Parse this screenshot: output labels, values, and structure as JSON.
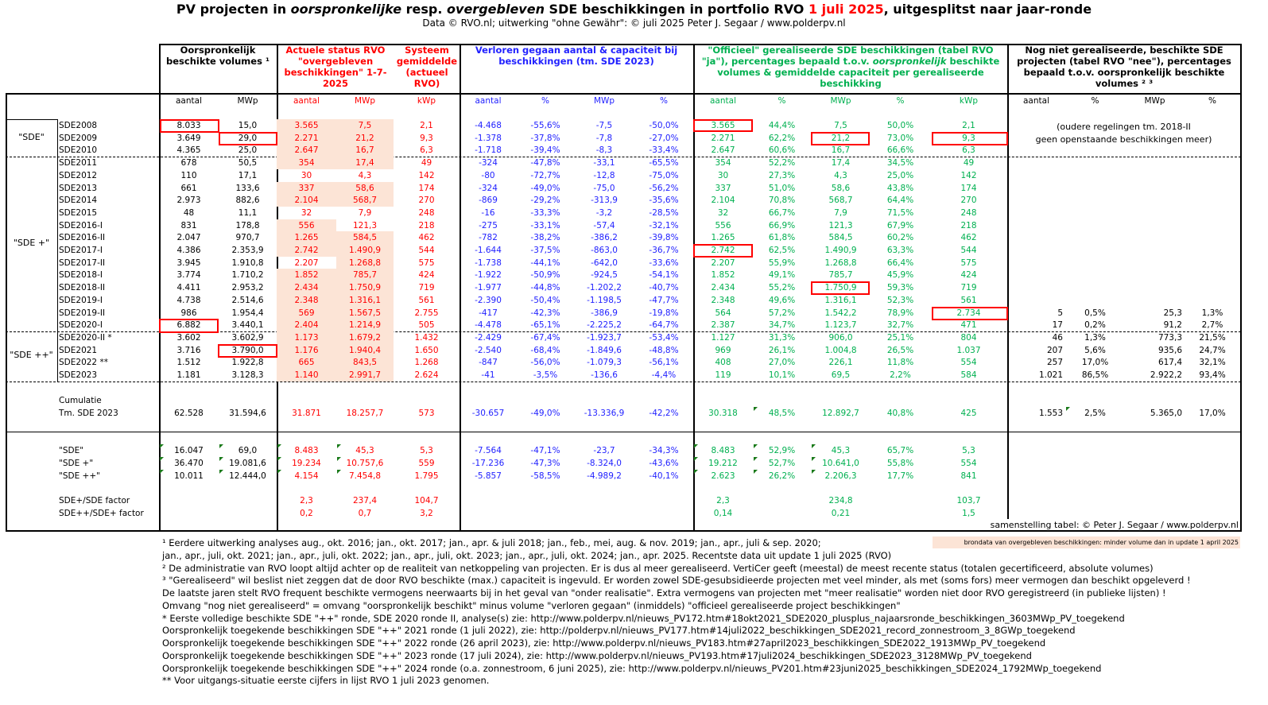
{
  "title": {
    "p1": "PV projecten in ",
    "p2": "oorspronkelijke",
    "p3": " resp. ",
    "p4": "overgebleven",
    "p5": " SDE beschikkingen in portfolio RVO ",
    "p6": "1 juli 2025",
    "p7": ", uitgesplitst naar jaar-ronde"
  },
  "subtitle": "Data © RVO.nl; uitwerking \"ohne Gewähr\": © juli 2025 Peter J. Segaar / www.polderpv.nl",
  "headers": {
    "orig": "Oorspronkelijk beschikte volumes ¹",
    "actual": "Actuele  status  RVO \"overgebleven beschikkingen\" 1-7-2025",
    "system": "Systeem gemiddelde (actueel RVO)",
    "lost": "Verloren gegaan aantal & capaciteit bij beschikkingen (tm. SDE 2023)",
    "real_a": "\"Officieel\" gerealiseerde SDE beschikkingen (tabel RVO \"ja\"), percentages bepaald t.o.v. ",
    "real_b": "oorspronkelijk",
    "real_c": " beschikte volumes & gemiddelde capaciteit per gerealiseerde beschikking",
    "nog": "Nog niet gerealiseerde, beschikte SDE projecten (tabel RVO \"nee\"), percentages bepaald t.o.v. oorspronkelijk beschikte volumes ² ³"
  },
  "subheaders": [
    "aantal",
    "MWp",
    "aantal",
    "MWp",
    "kWp",
    "aantal",
    "%",
    "MWp",
    "%",
    "aantal",
    "%",
    "MWp",
    "%",
    "kWp",
    "aantal",
    "%",
    "MWp",
    "%"
  ],
  "groups": [
    "\"SDE\"",
    "\"SDE +\"",
    "\"SDE ++\""
  ],
  "old_note": [
    "(oudere regelingen tm. 2018-II",
    "geen openstaande beschikkingen meer)"
  ],
  "rows": [
    [
      "SDE2008",
      "8.033",
      "15,0",
      "3.565",
      "7,5",
      "2,1",
      "-4.468",
      "-55,6%",
      "-7,5",
      "-50,0%",
      "3.565",
      "44,4%",
      "7,5",
      "50,0%",
      "2,1",
      "",
      "",
      "",
      ""
    ],
    [
      "SDE2009",
      "3.649",
      "29,0",
      "2.271",
      "21,2",
      "9,3",
      "-1.378",
      "-37,8%",
      "-7,8",
      "-27,0%",
      "2.271",
      "62,2%",
      "21,2",
      "73,0%",
      "9,3",
      "",
      "",
      "",
      ""
    ],
    [
      "SDE2010",
      "4.365",
      "25,0",
      "2.647",
      "16,7",
      "6,3",
      "-1.718",
      "-39,4%",
      "-8,3",
      "-33,4%",
      "2.647",
      "60,6%",
      "16,7",
      "66,6%",
      "6,3",
      "",
      "",
      "",
      ""
    ],
    [
      "SDE2011",
      "678",
      "50,5",
      "354",
      "17,4",
      "49",
      "-324",
      "-47,8%",
      "-33,1",
      "-65,5%",
      "354",
      "52,2%",
      "17,4",
      "34,5%",
      "49",
      "",
      "",
      "",
      ""
    ],
    [
      "SDE2012",
      "110",
      "17,1",
      "30",
      "4,3",
      "142",
      "-80",
      "-72,7%",
      "-12,8",
      "-75,0%",
      "30",
      "27,3%",
      "4,3",
      "25,0%",
      "142",
      "",
      "",
      "",
      ""
    ],
    [
      "SDE2013",
      "661",
      "133,6",
      "337",
      "58,6",
      "174",
      "-324",
      "-49,0%",
      "-75,0",
      "-56,2%",
      "337",
      "51,0%",
      "58,6",
      "43,8%",
      "174",
      "",
      "",
      "",
      ""
    ],
    [
      "SDE2014",
      "2.973",
      "882,6",
      "2.104",
      "568,7",
      "270",
      "-869",
      "-29,2%",
      "-313,9",
      "-35,6%",
      "2.104",
      "70,8%",
      "568,7",
      "64,4%",
      "270",
      "",
      "",
      "",
      ""
    ],
    [
      "SDE2015",
      "48",
      "11,1",
      "32",
      "7,9",
      "248",
      "-16",
      "-33,3%",
      "-3,2",
      "-28,5%",
      "32",
      "66,7%",
      "7,9",
      "71,5%",
      "248",
      "",
      "",
      "",
      ""
    ],
    [
      "SDE2016-I",
      "831",
      "178,8",
      "556",
      "121,3",
      "218",
      "-275",
      "-33,1%",
      "-57,4",
      "-32,1%",
      "556",
      "66,9%",
      "121,3",
      "67,9%",
      "218",
      "",
      "",
      "",
      ""
    ],
    [
      "SDE2016-II",
      "2.047",
      "970,7",
      "1.265",
      "584,5",
      "462",
      "-782",
      "-38,2%",
      "-386,2",
      "-39,8%",
      "1.265",
      "61,8%",
      "584,5",
      "60,2%",
      "462",
      "",
      "",
      "",
      ""
    ],
    [
      "SDE2017-I",
      "4.386",
      "2.353,9",
      "2.742",
      "1.490,9",
      "544",
      "-1.644",
      "-37,5%",
      "-863,0",
      "-36,7%",
      "2.742",
      "62,5%",
      "1.490,9",
      "63,3%",
      "544",
      "",
      "",
      "",
      ""
    ],
    [
      "SDE2017-II",
      "3.945",
      "1.910,8",
      "2.207",
      "1.268,8",
      "575",
      "-1.738",
      "-44,1%",
      "-642,0",
      "-33,6%",
      "2.207",
      "55,9%",
      "1.268,8",
      "66,4%",
      "575",
      "",
      "",
      "",
      ""
    ],
    [
      "SDE2018-I",
      "3.774",
      "1.710,2",
      "1.852",
      "785,7",
      "424",
      "-1.922",
      "-50,9%",
      "-924,5",
      "-54,1%",
      "1.852",
      "49,1%",
      "785,7",
      "45,9%",
      "424",
      "",
      "",
      "",
      ""
    ],
    [
      "SDE2018-II",
      "4.411",
      "2.953,2",
      "2.434",
      "1.750,9",
      "719",
      "-1.977",
      "-44,8%",
      "-1.202,2",
      "-40,7%",
      "2.434",
      "55,2%",
      "1.750,9",
      "59,3%",
      "719",
      "",
      "",
      "",
      ""
    ],
    [
      "SDE2019-I",
      "4.738",
      "2.514,6",
      "2.348",
      "1.316,1",
      "561",
      "-2.390",
      "-50,4%",
      "-1.198,5",
      "-47,7%",
      "2.348",
      "49,6%",
      "1.316,1",
      "52,3%",
      "561",
      "",
      "",
      "",
      ""
    ],
    [
      "SDE2019-II",
      "986",
      "1.954,4",
      "569",
      "1.567,5",
      "2.755",
      "-417",
      "-42,3%",
      "-386,9",
      "-19,8%",
      "564",
      "57,2%",
      "1.542,2",
      "78,9%",
      "2.734",
      "5",
      "0,5%",
      "25,3",
      "1,3%"
    ],
    [
      "SDE2020-I",
      "6.882",
      "3.440,1",
      "2.404",
      "1.214,9",
      "505",
      "-4.478",
      "-65,1%",
      "-2.225,2",
      "-64,7%",
      "2.387",
      "34,7%",
      "1.123,7",
      "32,7%",
      "471",
      "17",
      "0,2%",
      "91,2",
      "2,7%"
    ],
    [
      "SDE2020-II *",
      "3.602",
      "3.602,9",
      "1.173",
      "1.679,2",
      "1.432",
      "-2.429",
      "-67,4%",
      "-1.923,7",
      "-53,4%",
      "1.127",
      "31,3%",
      "906,0",
      "25,1%",
      "804",
      "46",
      "1,3%",
      "773,3",
      "21,5%"
    ],
    [
      "SDE2021",
      "3.716",
      "3.790,0",
      "1.176",
      "1.940,4",
      "1.650",
      "-2.540",
      "-68,4%",
      "-1.849,6",
      "-48,8%",
      "969",
      "26,1%",
      "1.004,8",
      "26,5%",
      "1.037",
      "207",
      "5,6%",
      "935,6",
      "24,7%"
    ],
    [
      "SDE2022 **",
      "1.512",
      "1.922,8",
      "665",
      "843,5",
      "1.268",
      "-847",
      "-56,0%",
      "-1.079,3",
      "-56,1%",
      "408",
      "27,0%",
      "226,1",
      "11,8%",
      "554",
      "257",
      "17,0%",
      "617,4",
      "32,1%"
    ],
    [
      "SDE2023",
      "1.181",
      "3.128,3",
      "1.140",
      "2.991,7",
      "2.624",
      "-41",
      "-3,5%",
      "-136,6",
      "-4,4%",
      "119",
      "10,1%",
      "69,5",
      "2,2%",
      "584",
      "1.021",
      "86,5%",
      "2.922,2",
      "93,4%"
    ]
  ],
  "cumulative": {
    "label1": "Cumulatie",
    "values": [
      "Tm. SDE 2023",
      "62.528",
      "31.594,6",
      "31.871",
      "18.257,7",
      "573",
      "-30.657",
      "-49,0%",
      "-13.336,9",
      "-42,2%",
      "30.318",
      "48,5%",
      "12.892,7",
      "40,8%",
      "425",
      "1.553",
      "2,5%",
      "5.365,0",
      "17,0%"
    ]
  },
  "summary": [
    [
      "\"SDE\"",
      "16.047",
      "69,0",
      "8.483",
      "45,3",
      "5,3",
      "-7.564",
      "-47,1%",
      "-23,7",
      "-34,3%",
      "8.483",
      "52,9%",
      "45,3",
      "65,7%",
      "5,3",
      "",
      "",
      "",
      ""
    ],
    [
      "\"SDE +\"",
      "36.470",
      "19.081,6",
      "19.234",
      "10.757,6",
      "559",
      "-17.236",
      "-47,3%",
      "-8.324,0",
      "-43,6%",
      "19.212",
      "52,7%",
      "10.641,0",
      "55,8%",
      "554",
      "",
      "",
      "",
      ""
    ],
    [
      "\"SDE ++\"",
      "10.011",
      "12.444,0",
      "4.154",
      "7.454,8",
      "1.795",
      "-5.857",
      "-58,5%",
      "-4.989,2",
      "-40,1%",
      "2.623",
      "26,2%",
      "2.206,3",
      "17,7%",
      "841",
      "",
      "",
      "",
      ""
    ]
  ],
  "factors": [
    [
      "SDE+/SDE factor",
      "",
      "",
      "2,3",
      "237,4",
      "104,7",
      "",
      "",
      "",
      "",
      "2,3",
      "",
      "234,8",
      "",
      "103,7",
      "",
      "",
      "",
      ""
    ],
    [
      "SDE++/SDE+ factor",
      "",
      "",
      "0,2",
      "0,7",
      "3,2",
      "",
      "",
      "",
      "",
      "0,14",
      "",
      "0,21",
      "",
      "1,5",
      "",
      "",
      "",
      ""
    ]
  ],
  "credit": "samenstelling tabel: © Peter J. Segaar / www.polderpv.nl",
  "legend_note": "brondata van overgebleven beschikkingen: minder volume dan in update 1 april 2025",
  "footnotes": [
    "¹ Eerdere uitwerking analyses aug., okt. 2016; jan., okt.  2017; jan., apr. & juli 2018; jan., feb., mei, aug. & nov. 2019; jan., apr., juli & sep. 2020;",
    " jan., apr., juli, okt. 2021; jan., apr., juli, okt. 2022; jan., apr., juli, okt. 2023; jan., apr., juli, okt. 2024; jan., apr. 2025. Recentste data uit update 1 juli 2025 (RVO)",
    "² De administratie van RVO loopt altijd achter op de realiteit van netkoppeling van projecten. Er is dus al meer gerealiseerd. VertiCer geeft (meestal) de meest recente status (totalen gecertificeerd, absolute volumes)",
    "³ \"Gerealiseerd\" wil beslist niet zeggen dat de door RVO beschikte (max.) capaciteit is ingevuld. Er worden zowel SDE-gesubsidieerde projecten met veel minder, als met (soms fors) meer  vermogen dan beschikt opgeleverd !",
    "De laatste jaren stelt RVO frequent beschikte vermogens neerwaarts bij in het geval van \"onder realisatie\". Extra vermogens van projecten met \"meer realisatie\" worden niet door RVO geregistreerd (in publieke lijsten) !",
    "Omvang \"nog niet gerealiseerd\" = omvang \"oorspronkelijk beschikt\" minus volume \"verloren gegaan\" (inmiddels) \"officieel gerealiseerde project beschikkingen\"",
    "* Eerste volledige beschikte SDE \"++\" ronde, SDE 2020 ronde II, analyse(s) zie: http://www.polderpv.nl/nieuws_PV172.htm#18okt2021_SDE2020_plusplus_najaarsronde_beschikkingen_3603MWp_PV_toegekend",
    "Oorspronkelijk toegekende beschikkingen SDE \"++\" 2021 ronde (1 juli 2022), zie: http://polderpv.nl/nieuws_PV177.htm#14juli2022_beschikkingen_SDE2021_record_zonnestroom_3_8GWp_toegekend",
    "Oorspronkelijk toegekende beschikkingen SDE \"++\" 2022 ronde (26 april 2023), zie: http://www.polderpv.nl/nieuws_PV183.htm#27april2023_beschikkingen_SDE2022_1913MWp_PV_toegekend",
    "Oorspronkelijk toegekende beschikkingen SDE \"++\" 2023 ronde (17 juli 2024), zie: http://www.polderpv.nl/nieuws_PV193.htm#17juli2024_beschikkingen_SDE2023_3128MWp_PV_toegekend",
    "Oorspronkelijk toegekende beschikkingen SDE \"++\" 2024 ronde (o.a. zonnestroom, 6 juni 2025), zie: http://www.polderpv.nl/nieuws_PV201.htm#23juni2025_beschikkingen_SDE2024_1792MWp_toegekend",
    "** Voor uitgangs-situatie eerste cijfers in lijst RVO 1 juli 2023 genomen."
  ],
  "colors": {
    "actual": "#ff0000",
    "lost": "#2222ff",
    "realized": "#00b050",
    "peach": "#fce4d6",
    "highlight_box": "#ff0000"
  }
}
